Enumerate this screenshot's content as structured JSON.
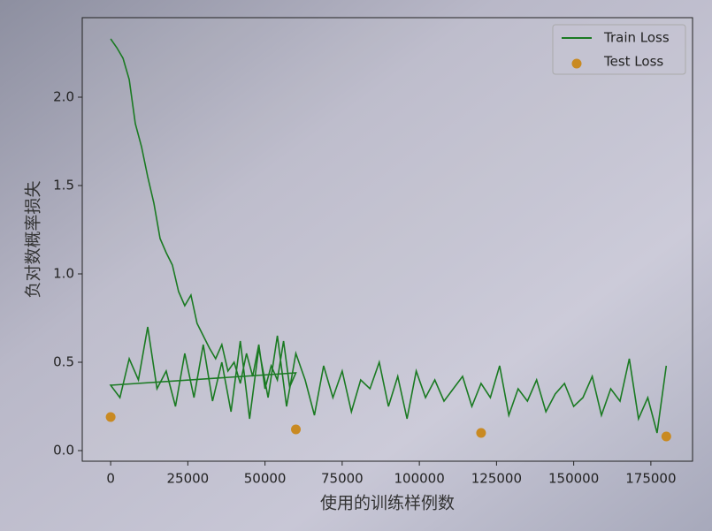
{
  "chart_data": {
    "type": "line",
    "xlabel": "使用的训练样例数",
    "ylabel": "负对数概率损失",
    "xlim": [
      -9200,
      188500
    ],
    "ylim": [
      -0.06,
      2.45
    ],
    "xticks": [
      0,
      25000,
      50000,
      75000,
      100000,
      125000,
      150000,
      175000
    ],
    "yticks": [
      {
        "value": 0,
        "label": "0.0"
      },
      {
        "value": 0.5,
        "label": "0.5"
      },
      {
        "value": 1,
        "label": "1.0"
      },
      {
        "value": 1.5,
        "label": "1.5"
      },
      {
        "value": 2,
        "label": "2.0"
      }
    ],
    "legend": "upper right",
    "series": [
      {
        "name": "Train Loss",
        "type": "line",
        "color": "#1a7a22",
        "x": [
          0,
          2000,
          4000,
          6000,
          8000,
          10000,
          12000,
          14000,
          16000,
          18000,
          20000,
          22000,
          24000,
          26000,
          28000,
          30000,
          32000,
          34000,
          36000,
          38000,
          40000,
          42000,
          44000,
          46000,
          48000,
          50000,
          52000,
          54000,
          56000,
          58000,
          60000,
          0,
          3000,
          6000,
          9000,
          12000,
          15000,
          18000,
          21000,
          24000,
          27000,
          30000,
          33000,
          36000,
          39000,
          42000,
          45000,
          48000,
          51000,
          54000,
          57000,
          60000,
          63000,
          66000,
          69000,
          72000,
          75000,
          78000,
          81000,
          84000,
          87000,
          90000,
          93000,
          96000,
          99000,
          102000,
          105000,
          108000,
          111000,
          114000,
          117000,
          120000,
          123000,
          126000,
          129000,
          132000,
          135000,
          138000,
          141000,
          144000,
          147000,
          150000,
          153000,
          156000,
          159000,
          162000,
          165000,
          168000,
          171000,
          174000,
          177000,
          180000
        ],
        "values": [
          2.33,
          2.28,
          2.22,
          2.1,
          1.85,
          1.72,
          1.55,
          1.4,
          1.2,
          1.12,
          1.05,
          0.9,
          0.82,
          0.88,
          0.72,
          0.65,
          0.58,
          0.52,
          0.6,
          0.45,
          0.5,
          0.38,
          0.55,
          0.42,
          0.6,
          0.35,
          0.48,
          0.4,
          0.62,
          0.36,
          0.44,
          0.37,
          0.3,
          0.52,
          0.4,
          0.7,
          0.35,
          0.45,
          0.25,
          0.55,
          0.3,
          0.6,
          0.28,
          0.5,
          0.22,
          0.62,
          0.18,
          0.58,
          0.3,
          0.65,
          0.25,
          0.55,
          0.4,
          0.2,
          0.48,
          0.3,
          0.45,
          0.22,
          0.4,
          0.35,
          0.5,
          0.25,
          0.42,
          0.18,
          0.45,
          0.3,
          0.4,
          0.28,
          0.35,
          0.42,
          0.25,
          0.38,
          0.3,
          0.48,
          0.2,
          0.35,
          0.28,
          0.4,
          0.22,
          0.32,
          0.38,
          0.25,
          0.3,
          0.42,
          0.2,
          0.35,
          0.28,
          0.52,
          0.18,
          0.3,
          0.1,
          0.48
        ]
      },
      {
        "name": "Test Loss",
        "type": "scatter",
        "color": "#c98a22",
        "x": [
          0,
          60000,
          120000,
          180000
        ],
        "values": [
          0.19,
          0.12,
          0.1,
          0.08
        ]
      }
    ]
  }
}
